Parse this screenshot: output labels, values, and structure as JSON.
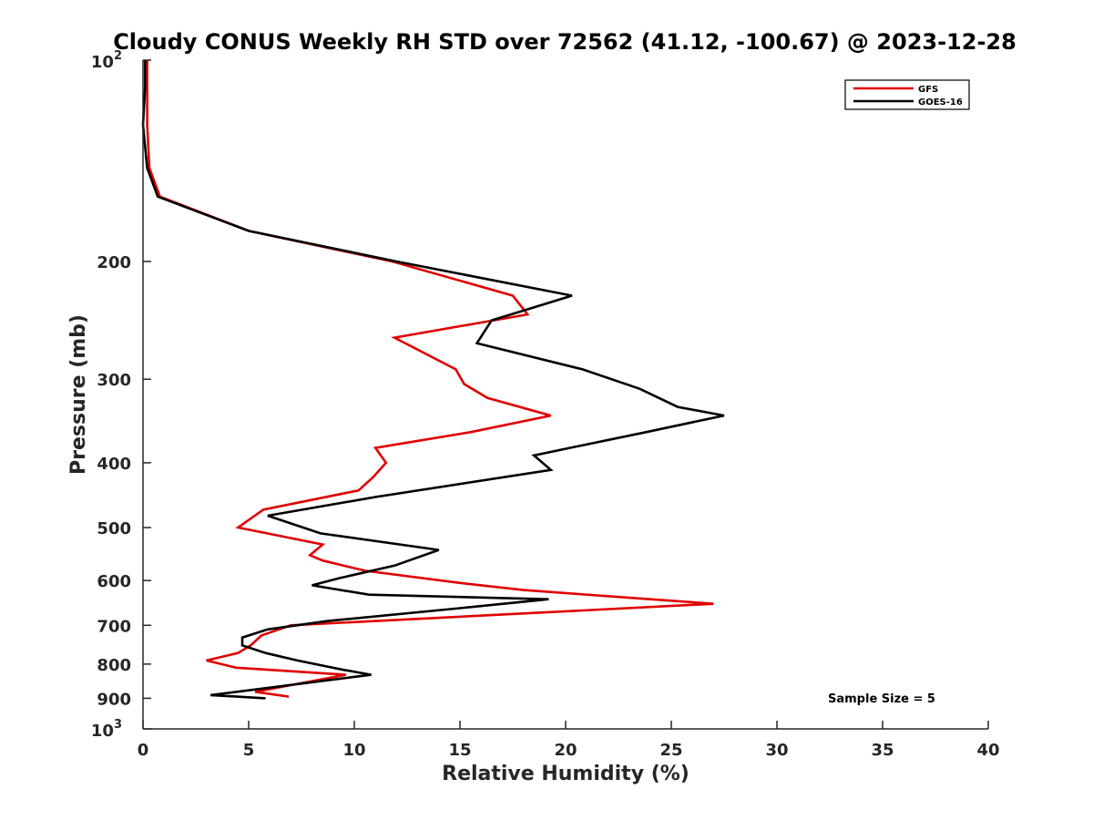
{
  "chart_data": {
    "type": "line",
    "title": "Cloudy CONUS Weekly RH STD over 72562 (41.12, -100.67) @ 2023-12-28",
    "xlabel": "Relative Humidity (%)",
    "ylabel": "Pressure (mb)",
    "xlim": [
      0,
      40
    ],
    "ylim": [
      100,
      1000
    ],
    "yscale": "log",
    "y_reversed": true,
    "grid": false,
    "legend_position": "top-right",
    "x_ticks": [
      "0",
      "5",
      "10",
      "15",
      "20",
      "25",
      "30",
      "35",
      "40"
    ],
    "y_ticks": [
      {
        "value": 100,
        "base": "10",
        "exp": "2"
      },
      {
        "value": 200,
        "label": "200"
      },
      {
        "value": 300,
        "label": "300"
      },
      {
        "value": 400,
        "label": "400"
      },
      {
        "value": 500,
        "label": "500"
      },
      {
        "value": 600,
        "label": "600"
      },
      {
        "value": 700,
        "label": "700"
      },
      {
        "value": 800,
        "label": "800"
      },
      {
        "value": 900,
        "label": "900"
      },
      {
        "value": 1000,
        "base": "10",
        "exp": "3"
      }
    ],
    "annotation": "Sample Size = 5",
    "series": [
      {
        "name": "GFS",
        "color": "#e00000",
        "x": [
          6.9,
          5.3,
          9.6,
          4.4,
          3.0,
          4.5,
          5.1,
          5.6,
          7.0,
          27.0,
          22.5,
          18.0,
          15.0,
          10.5,
          8.5,
          7.9,
          8.5,
          4.5,
          5.7,
          10.2,
          10.9,
          11.5,
          11.0,
          15.5,
          19.3,
          16.3,
          15.2,
          14.8,
          11.9,
          18.2,
          17.5,
          11.8,
          5.0,
          0.8,
          0.3,
          0.2,
          0.2
        ],
        "y": [
          895,
          880,
          830,
          810,
          790,
          770,
          750,
          725,
          700,
          650,
          635,
          620,
          605,
          580,
          560,
          550,
          530,
          500,
          470,
          440,
          420,
          400,
          380,
          360,
          340,
          320,
          305,
          290,
          260,
          240,
          225,
          200,
          180,
          160,
          145,
          125,
          100
        ]
      },
      {
        "name": "GOES-16",
        "color": "#000000",
        "x": [
          5.8,
          3.2,
          10.8,
          9.4,
          7.3,
          5.8,
          4.7,
          4.7,
          5.9,
          8.7,
          15.0,
          19.2,
          10.7,
          8.0,
          9.3,
          11.9,
          14.0,
          8.4,
          5.9,
          11.0,
          19.3,
          18.5,
          23.8,
          27.5,
          25.3,
          23.5,
          20.8,
          15.8,
          16.5,
          20.3,
          12.0,
          5.0,
          0.7,
          0.2,
          0.0,
          0.1,
          0.1
        ],
        "y": [
          900,
          890,
          830,
          815,
          790,
          770,
          750,
          730,
          710,
          690,
          660,
          640,
          630,
          610,
          595,
          570,
          540,
          510,
          480,
          450,
          410,
          390,
          360,
          340,
          330,
          310,
          290,
          265,
          245,
          225,
          200,
          180,
          160,
          145,
          125,
          110,
          100
        ]
      }
    ]
  }
}
